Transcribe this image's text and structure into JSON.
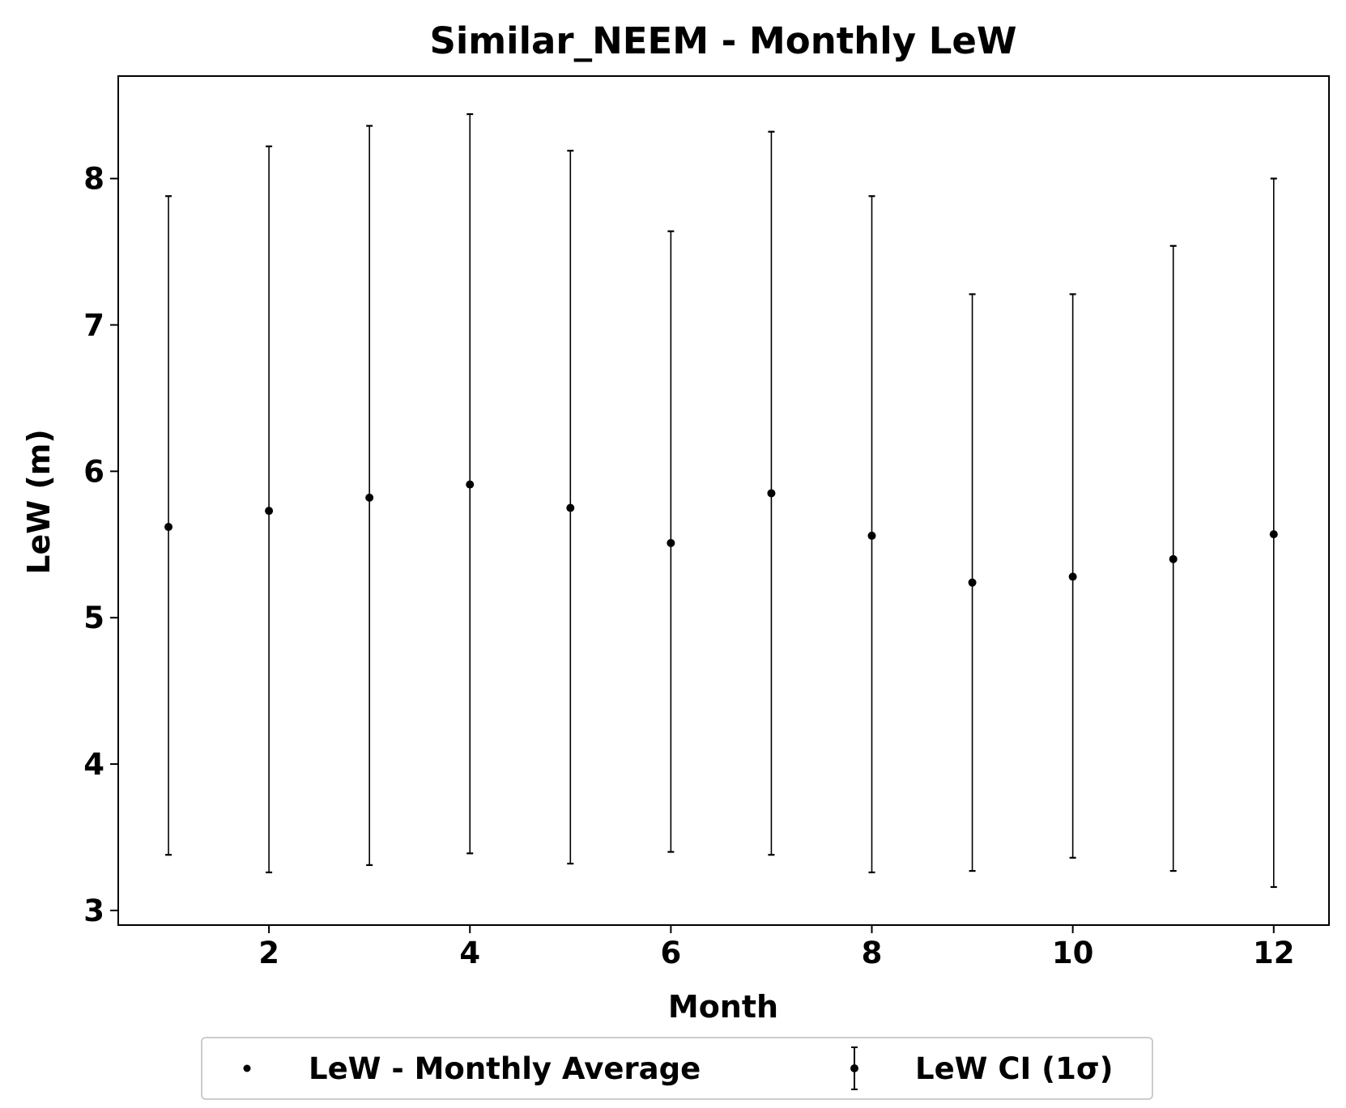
{
  "chart_data": {
    "type": "scatter",
    "title": "Similar_NEEM - Monthly LeW",
    "xlabel": "Month",
    "ylabel": "LeW (m)",
    "xlim": [
      0.5,
      12.55
    ],
    "ylim": [
      2.9,
      8.7
    ],
    "xticks": [
      2,
      4,
      6,
      8,
      10,
      12
    ],
    "yticks": [
      3,
      4,
      5,
      6,
      7,
      8
    ],
    "grid": false,
    "legend_position": "bottom-center, below axes",
    "colors": {
      "points": "#000000",
      "errorbars": "#000000",
      "axes": "#000000",
      "legend_border": "#cccccc"
    },
    "series": [
      {
        "name": "LeW - Monthly Average",
        "x": [
          1,
          2,
          3,
          4,
          5,
          6,
          7,
          8,
          9,
          10,
          11,
          12
        ],
        "y": [
          5.62,
          5.73,
          5.82,
          5.91,
          5.75,
          5.51,
          5.85,
          5.56,
          5.24,
          5.28,
          5.4,
          5.57
        ]
      },
      {
        "name": "LeW CI (1σ)",
        "x": [
          1,
          2,
          3,
          4,
          5,
          6,
          7,
          8,
          9,
          10,
          11,
          12
        ],
        "lower": [
          3.38,
          3.26,
          3.31,
          3.39,
          3.32,
          3.4,
          3.38,
          3.26,
          3.27,
          3.36,
          3.27,
          3.16
        ],
        "upper": [
          7.88,
          8.22,
          8.36,
          8.44,
          8.19,
          7.64,
          8.32,
          7.88,
          7.21,
          7.21,
          7.54,
          8.0
        ]
      }
    ]
  }
}
